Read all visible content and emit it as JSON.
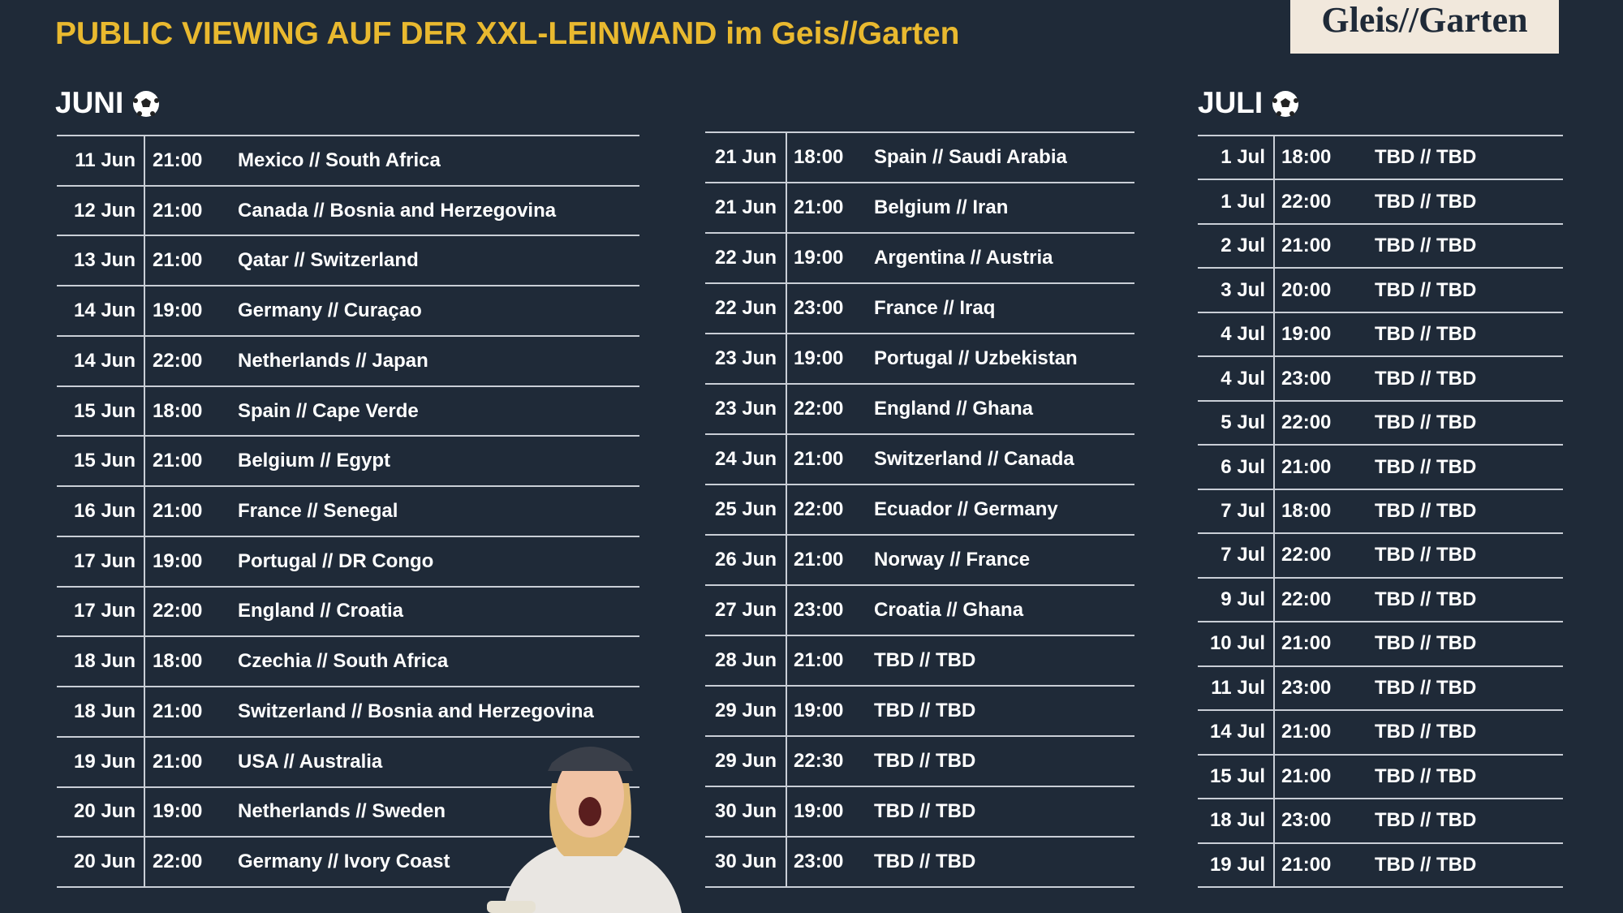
{
  "header": {
    "subtitle": "PUBLIC VIEWING AUF DER XXL-LEINWAND im Geis//Garten",
    "logo": "Gleis//Garten"
  },
  "columns": [
    {
      "title": "JUNI",
      "rows": [
        [
          "11 Jun",
          "21:00",
          "Mexico // South Africa"
        ],
        [
          "12 Jun",
          "21:00",
          "Canada // Bosnia and Herzegovina"
        ],
        [
          "13 Jun",
          "21:00",
          "Qatar // Switzerland"
        ],
        [
          "14 Jun",
          "19:00",
          "Germany // Curaçao"
        ],
        [
          "14 Jun",
          "22:00",
          "Netherlands // Japan"
        ],
        [
          "15 Jun",
          "18:00",
          "Spain // Cape Verde"
        ],
        [
          "15 Jun",
          "21:00",
          "Belgium // Egypt"
        ],
        [
          "16 Jun",
          "21:00",
          "France // Senegal"
        ],
        [
          "17 Jun",
          "19:00",
          "Portugal // DR Congo"
        ],
        [
          "17 Jun",
          "22:00",
          "England // Croatia"
        ],
        [
          "18 Jun",
          "18:00",
          "Czechia // South Africa"
        ],
        [
          "18 Jun",
          "21:00",
          "Switzerland // Bosnia and Herzegovina"
        ],
        [
          "19 Jun",
          "21:00",
          "USA // Australia"
        ],
        [
          "20 Jun",
          "19:00",
          "Netherlands // Sweden"
        ],
        [
          "20 Jun",
          "22:00",
          "Germany // Ivory Coast"
        ]
      ]
    },
    {
      "rows": [
        [
          "21 Jun",
          "18:00",
          "Spain // Saudi Arabia"
        ],
        [
          "21 Jun",
          "21:00",
          "Belgium // Iran"
        ],
        [
          "22 Jun",
          "19:00",
          "Argentina // Austria"
        ],
        [
          "22 Jun",
          "23:00",
          "France // Iraq"
        ],
        [
          "23 Jun",
          "19:00",
          "Portugal // Uzbekistan"
        ],
        [
          "23 Jun",
          "22:00",
          "England // Ghana"
        ],
        [
          "24 Jun",
          "21:00",
          "Switzerland // Canada"
        ],
        [
          "25 Jun",
          "22:00",
          "Ecuador // Germany"
        ],
        [
          "26 Jun",
          "21:00",
          "Norway // France"
        ],
        [
          "27 Jun",
          "23:00",
          "Croatia // Ghana"
        ],
        [
          "28 Jun",
          "21:00",
          "TBD // TBD"
        ],
        [
          "29 Jun",
          "19:00",
          "TBD // TBD"
        ],
        [
          "29 Jun",
          "22:30",
          "TBD // TBD"
        ],
        [
          "30 Jun",
          "19:00",
          "TBD // TBD"
        ],
        [
          "30 Jun",
          "23:00",
          "TBD // TBD"
        ]
      ]
    },
    {
      "title": "JULI",
      "rows": [
        [
          "1 Jul",
          "18:00",
          "TBD // TBD"
        ],
        [
          "1 Jul",
          "22:00",
          "TBD // TBD"
        ],
        [
          "2 Jul",
          "21:00",
          "TBD // TBD"
        ],
        [
          "3 Jul",
          "20:00",
          "TBD // TBD"
        ],
        [
          "4 Jul",
          "19:00",
          "TBD // TBD"
        ],
        [
          "4 Jul",
          "23:00",
          "TBD // TBD"
        ],
        [
          "5 Jul",
          "22:00",
          "TBD // TBD"
        ],
        [
          "6 Jul",
          "21:00",
          "TBD // TBD"
        ],
        [
          "7 Jul",
          "18:00",
          "TBD // TBD"
        ],
        [
          "7 Jul",
          "22:00",
          "TBD // TBD"
        ],
        [
          "9 Jul",
          "22:00",
          "TBD // TBD"
        ],
        [
          "10 Jul",
          "21:00",
          "TBD // TBD"
        ],
        [
          "11 Jul",
          "23:00",
          "TBD // TBD"
        ],
        [
          "14 Jul",
          "21:00",
          "TBD // TBD"
        ],
        [
          "15 Jul",
          "21:00",
          "TBD // TBD"
        ],
        [
          "18 Jul",
          "23:00",
          "TBD // TBD"
        ],
        [
          "19 Jul",
          "21:00",
          "TBD // TBD"
        ]
      ]
    }
  ]
}
